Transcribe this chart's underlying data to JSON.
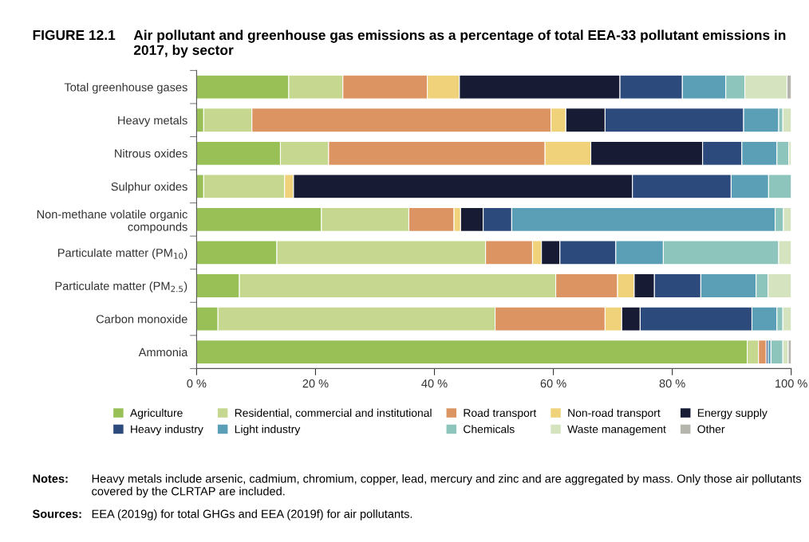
{
  "chart_data": {
    "type": "bar",
    "orientation": "horizontal",
    "stacked": true,
    "title": "Air pollutant and greenhouse gas emissions as a percentage of total EEA-33 pollutant emissions in 2017, by sector",
    "categories": [
      "Total greenhouse gases",
      "Heavy metals",
      "Nitrous oxides",
      "Sulphur oxides",
      "Non-methane volatile organic compounds",
      "Particulate matter (PM$_{10}$)",
      "Particulate matter (PM$_{2.5}$)",
      "Carbon monoxide",
      "Ammonia"
    ],
    "series": [
      {
        "name": "Agriculture",
        "color": "#99c057",
        "values": [
          15.5,
          1.2,
          14.1,
          1.2,
          21.0,
          13.5,
          7.2,
          3.6,
          92.6
        ]
      },
      {
        "name": "Residential, commercial and institutional",
        "color": "#c6d88f",
        "values": [
          9.1,
          8.1,
          8.1,
          13.6,
          14.7,
          35.1,
          53.2,
          46.6,
          1.9
        ]
      },
      {
        "name": "Road transport",
        "color": "#dc9562",
        "values": [
          14.2,
          50.3,
          36.4,
          0,
          7.6,
          7.9,
          10.4,
          18.5,
          1.3
        ]
      },
      {
        "name": "Non-road transport",
        "color": "#efd27a",
        "values": [
          5.4,
          2.5,
          7.7,
          1.5,
          1.1,
          1.5,
          2.8,
          2.8,
          0
        ]
      },
      {
        "name": "Energy supply",
        "color": "#171b33",
        "values": [
          27.0,
          6.6,
          18.8,
          57.0,
          3.8,
          3.1,
          3.4,
          3.1,
          0
        ]
      },
      {
        "name": "Heavy industry",
        "color": "#2c4a7c",
        "values": [
          10.5,
          23.3,
          6.6,
          16.6,
          4.8,
          9.4,
          7.8,
          18.8,
          0.3
        ]
      },
      {
        "name": "Light industry",
        "color": "#5b9fb7",
        "values": [
          7.3,
          5.9,
          5.9,
          6.3,
          44.3,
          8.0,
          9.3,
          4.2,
          0.5
        ]
      },
      {
        "name": "Chemicals",
        "color": "#8dc4bc",
        "values": [
          3.2,
          0.7,
          2.0,
          3.8,
          1.4,
          19.4,
          2.0,
          1.0,
          2.0
        ]
      },
      {
        "name": "Waste management",
        "color": "#d5e4bf",
        "values": [
          7.1,
          1.4,
          0.4,
          0,
          1.3,
          2.1,
          3.9,
          1.4,
          0.9
        ]
      },
      {
        "name": "Other",
        "color": "#b5b5ad",
        "values": [
          0.7,
          0,
          0,
          0,
          0,
          0,
          0,
          0,
          0.5
        ]
      }
    ],
    "xlim": [
      0,
      100
    ],
    "xticks": [
      {
        "value": 0,
        "label": "0 %"
      },
      {
        "value": 20,
        "label": "20 %"
      },
      {
        "value": 40,
        "label": "40 %"
      },
      {
        "value": 60,
        "label": "60 %"
      },
      {
        "value": 80,
        "label": "80 %"
      },
      {
        "value": 100,
        "label": "100 %"
      }
    ],
    "legend": "bottom",
    "annotations": [
      "FIGURE 12.1",
      "Notes:",
      "Heavy metals include arsenic, cadmium, chromium, copper, lead, mercury and zinc and are aggregated by mass. Only those air pollutants covered by the CLRTAP are included.",
      "Sources:",
      "EEA (2019g) for total GHGs and EEA (2019f) for air pollutants."
    ]
  }
}
